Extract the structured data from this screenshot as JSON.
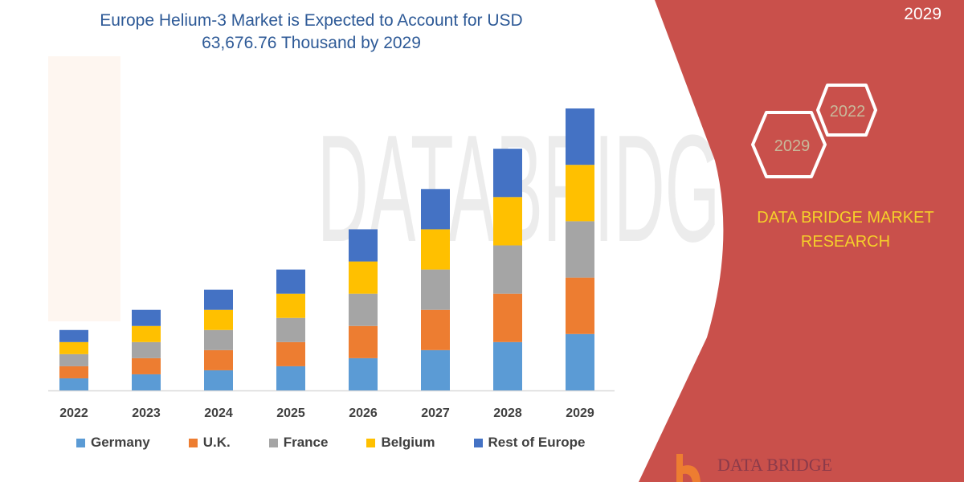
{
  "title_line1": "Europe Helium-3 Market is Expected to Account for USD",
  "title_line2": "63,676.76 Thousand by 2029",
  "panel": {
    "year_text": "2029",
    "hex_years": [
      "2022",
      "2029"
    ],
    "brand": "DATA BRIDGE MARKET RESEARCH",
    "logo_text": "DATA BRIDGE",
    "color": "#C9504B",
    "brand_color": "#F5D02A"
  },
  "chart_data": {
    "type": "bar",
    "stacked": true,
    "title": "Europe Helium-3 Market is Expected to Account for USD 63,676.76 Thousand by 2029",
    "categories": [
      "2022",
      "2023",
      "2024",
      "2025",
      "2026",
      "2027",
      "2028",
      "2029"
    ],
    "series": [
      {
        "name": "Germany",
        "color": "#5B9BD5",
        "values": [
          3,
          4,
          5,
          6,
          8,
          10,
          12,
          14
        ]
      },
      {
        "name": "U.K.",
        "color": "#ED7D31",
        "values": [
          3,
          4,
          5,
          6,
          8,
          10,
          12,
          14
        ]
      },
      {
        "name": "France",
        "color": "#A5A5A5",
        "values": [
          3,
          4,
          5,
          6,
          8,
          10,
          12,
          14
        ]
      },
      {
        "name": "Belgium",
        "color": "#FFC000",
        "values": [
          3,
          4,
          5,
          6,
          8,
          10,
          12,
          14
        ]
      },
      {
        "name": "Rest of Europe",
        "color": "#4472C4",
        "values": [
          3,
          4,
          5,
          6,
          8,
          10,
          12,
          14
        ]
      }
    ],
    "xlabel": "",
    "ylabel": "",
    "y_axis_shown": false,
    "ylim": [
      0,
      75
    ],
    "grid": false,
    "legend_position": "bottom"
  }
}
